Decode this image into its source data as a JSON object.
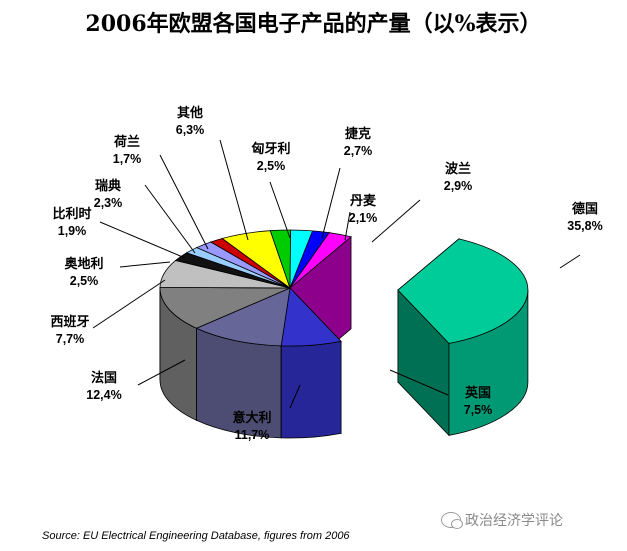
{
  "chart_data": {
    "type": "pie",
    "title": "2006年欧盟各国电子产品的产量（以%表示）",
    "slices": [
      {
        "name": "德国",
        "label": "35,8%",
        "value": 35.8,
        "color": "#00cc99"
      },
      {
        "name": "英国",
        "label": "7,5%",
        "value": 7.5,
        "color": "#3333cc"
      },
      {
        "name": "意大利",
        "label": "11,7%",
        "value": 11.7,
        "color": "#666699"
      },
      {
        "name": "法国",
        "label": "12,4%",
        "value": 12.4,
        "color": "#808080"
      },
      {
        "name": "西班牙",
        "label": "7,7%",
        "value": 7.7,
        "color": "#c0c0c0"
      },
      {
        "name": "奥地利",
        "label": "2,5%",
        "value": 2.5,
        "color": "#111111"
      },
      {
        "name": "比利时",
        "label": "1,9%",
        "value": 1.9,
        "color": "#99ccff"
      },
      {
        "name": "瑞典",
        "label": "2,3%",
        "value": 2.3,
        "color": "#9999ff"
      },
      {
        "name": "荷兰",
        "label": "1,7%",
        "value": 1.7,
        "color": "#cc0000"
      },
      {
        "name": "其他",
        "label": "6,3%",
        "value": 6.3,
        "color": "#ffff00"
      },
      {
        "name": "匈牙利",
        "label": "2,5%",
        "value": 2.5,
        "color": "#00cc00"
      },
      {
        "name": "捷克",
        "label": "2,7%",
        "value": 2.7,
        "color": "#00ffff"
      },
      {
        "name": "丹麦",
        "label": "2,1%",
        "value": 2.1,
        "color": "#0000ff"
      },
      {
        "name": "波兰",
        "label": "2,9%",
        "value": 2.9,
        "color": "#ff00ff"
      }
    ],
    "exploded": [
      "德国"
    ],
    "style": "3d",
    "source": "Source:  EU Electrical Engineering Database, figures from 2006"
  },
  "watermark": "政治经济学评论"
}
